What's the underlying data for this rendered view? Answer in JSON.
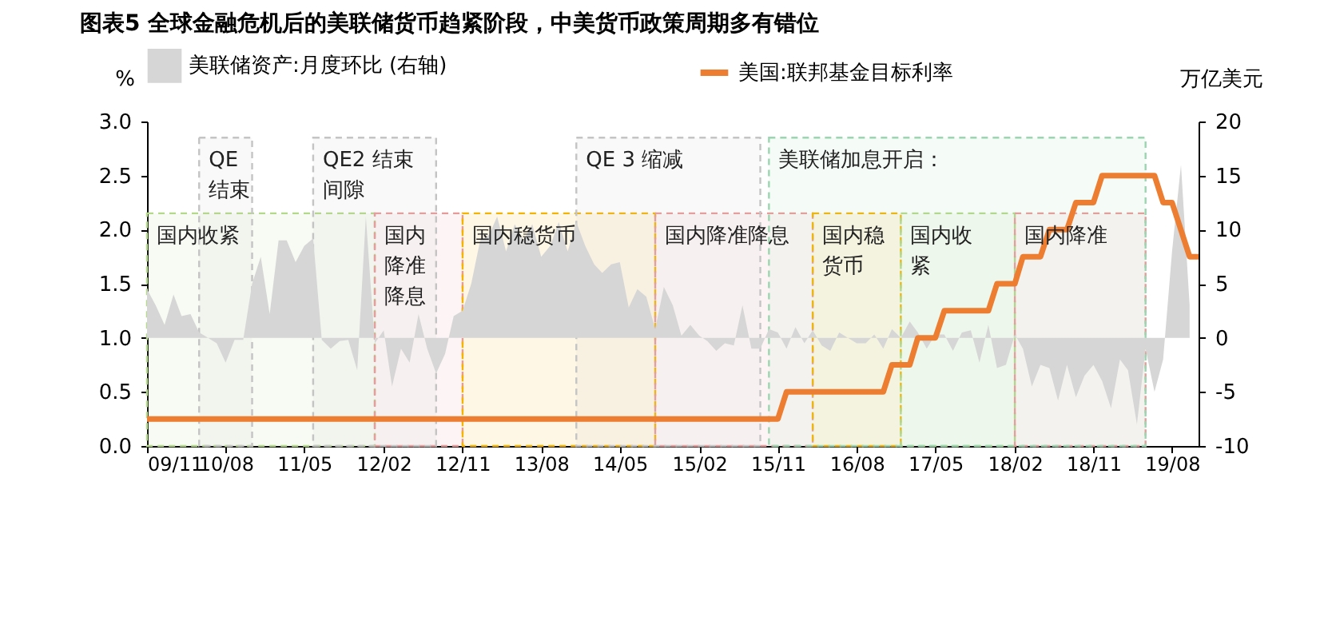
{
  "chart_data": {
    "type": "area",
    "title": "图表5  全球金融危机后的美联储货币趋紧阶段，中美货币政策周期多有错位",
    "ylabel": "%",
    "y2label": "万亿美元",
    "legend": "top",
    "xlim": [
      "2009-11",
      "2019-11"
    ],
    "xticks": [
      {
        "value": "2009-11",
        "label": "09/11"
      },
      {
        "value": "2010-08",
        "label": "10/08"
      },
      {
        "value": "2011-05",
        "label": "11/05"
      },
      {
        "value": "2012-02",
        "label": "12/02"
      },
      {
        "value": "2012-11",
        "label": "12/11"
      },
      {
        "value": "2013-08",
        "label": "13/08"
      },
      {
        "value": "2014-05",
        "label": "14/05"
      },
      {
        "value": "2015-02",
        "label": "15/02"
      },
      {
        "value": "2015-11",
        "label": "15/11"
      },
      {
        "value": "2016-08",
        "label": "16/08"
      },
      {
        "value": "2017-05",
        "label": "17/05"
      },
      {
        "value": "2018-02",
        "label": "18/02"
      },
      {
        "value": "2018-11",
        "label": "18/11"
      },
      {
        "value": "2019-08",
        "label": "19/08"
      }
    ],
    "ylim": [
      0,
      3
    ],
    "yticks": [
      {
        "value": 0,
        "label": "0.0"
      },
      0.5,
      {
        "value": 1,
        "label": "1.0"
      },
      1.5,
      {
        "value": 2,
        "label": "2.0"
      },
      2.5,
      {
        "value": 3,
        "label": "3.0"
      }
    ],
    "y2lim": [
      -10,
      20
    ],
    "y2ticks": [
      -10,
      -5,
      0,
      5,
      10,
      15,
      20
    ],
    "series": [
      {
        "name": "美联储资产:月度环比 (右轴)",
        "axis": "y2",
        "color": "#d6d6d6",
        "x": [
          "2009-11",
          "2009-12",
          "2010-01",
          "2010-02",
          "2010-03",
          "2010-04",
          "2010-05",
          "2010-06",
          "2010-07",
          "2010-08",
          "2010-09",
          "2010-10",
          "2010-11",
          "2010-12",
          "2011-01",
          "2011-02",
          "2011-03",
          "2011-04",
          "2011-05",
          "2011-06",
          "2011-07",
          "2011-08",
          "2011-09",
          "2011-10",
          "2011-11",
          "2011-12",
          "2012-01",
          "2012-02",
          "2012-03",
          "2012-04",
          "2012-05",
          "2012-06",
          "2012-07",
          "2012-08",
          "2012-09",
          "2012-10",
          "2012-11",
          "2012-12",
          "2013-01",
          "2013-02",
          "2013-03",
          "2013-04",
          "2013-05",
          "2013-06",
          "2013-07",
          "2013-08",
          "2013-09",
          "2013-10",
          "2013-11",
          "2013-12",
          "2014-01",
          "2014-02",
          "2014-03",
          "2014-04",
          "2014-05",
          "2014-06",
          "2014-07",
          "2014-08",
          "2014-09",
          "2014-10",
          "2014-11",
          "2014-12",
          "2015-01",
          "2015-02",
          "2015-03",
          "2015-04",
          "2015-05",
          "2015-06",
          "2015-07",
          "2015-08",
          "2015-09",
          "2015-10",
          "2015-11",
          "2015-12",
          "2016-01",
          "2016-02",
          "2016-03",
          "2016-04",
          "2016-05",
          "2016-06",
          "2016-07",
          "2016-08",
          "2016-09",
          "2016-10",
          "2016-11",
          "2016-12",
          "2017-01",
          "2017-02",
          "2017-03",
          "2017-04",
          "2017-05",
          "2017-06",
          "2017-07",
          "2017-08",
          "2017-09",
          "2017-10",
          "2017-11",
          "2017-12",
          "2018-01",
          "2018-02",
          "2018-03",
          "2018-04",
          "2018-05",
          "2018-06",
          "2018-07",
          "2018-08",
          "2018-09",
          "2018-10",
          "2018-11",
          "2018-12",
          "2019-01",
          "2019-02",
          "2019-03",
          "2019-04",
          "2019-05",
          "2019-06",
          "2019-07",
          "2019-08",
          "2019-09",
          "2019-10"
        ],
        "values": [
          4.5,
          3,
          1.2,
          4,
          2,
          2.2,
          0.5,
          0,
          -0.5,
          -2.3,
          -0.2,
          -0.2,
          5,
          7.5,
          2.2,
          9,
          9,
          7,
          8.5,
          9.2,
          -0.2,
          -1,
          -0.3,
          -0.2,
          -3,
          11.2,
          -0.5,
          0.7,
          -4.5,
          -1,
          -2.3,
          2.2,
          -1,
          -3.3,
          -1.5,
          2,
          2.5,
          5,
          9,
          9.5,
          11.2,
          8,
          10.5,
          9,
          10.5,
          7.5,
          8.5,
          10.7,
          8,
          10.7,
          8.5,
          6.8,
          6,
          6.8,
          7,
          2.8,
          4.5,
          3.8,
          0.8,
          4.7,
          3,
          0.2,
          1.2,
          0.2,
          -0.3,
          -1.2,
          -0.5,
          -0.7,
          3,
          -1,
          -1,
          0.8,
          0.5,
          -1,
          1,
          -0.5,
          0.7,
          -0.7,
          -1.2,
          0.5,
          0,
          -0.5,
          -0.5,
          0.3,
          -1,
          0.8,
          0,
          1.5,
          0.5,
          -1,
          0.3,
          0.3,
          -1.2,
          0.5,
          0.7,
          -2.3,
          1.2,
          -2.8,
          -2.5,
          0.3,
          -1,
          -4.5,
          -2.5,
          -2.8,
          -5.8,
          -2.5,
          -5.5,
          -3.5,
          -2.5,
          -4,
          -6.5,
          -2,
          -3,
          -8,
          -1,
          -5,
          -2,
          8,
          16,
          3
        ]
      },
      {
        "name": "美国:联邦基金目标利率",
        "type": "line",
        "color": "#ed7d31",
        "x": [
          "2009-11",
          "2015-11",
          "2015-12",
          "2016-11",
          "2016-12",
          "2017-02",
          "2017-03",
          "2017-05",
          "2017-06",
          "2017-11",
          "2017-12",
          "2018-02",
          "2018-03",
          "2018-05",
          "2018-06",
          "2018-08",
          "2018-09",
          "2018-11",
          "2018-12",
          "2019-06",
          "2019-07",
          "2019-08",
          "2019-10",
          "2019-11"
        ],
        "values": [
          0.25,
          0.25,
          0.5,
          0.5,
          0.75,
          0.75,
          1,
          1,
          1.25,
          1.25,
          1.5,
          1.5,
          1.75,
          1.75,
          2,
          2,
          2.25,
          2.25,
          2.5,
          2.5,
          2.25,
          2.25,
          1.75,
          1.75
        ]
      }
    ],
    "bands": [
      {
        "axis": "x",
        "from": "2009-11",
        "to": "2012-01",
        "label": "国内收紧",
        "color": "#b5d98a"
      },
      {
        "axis": "x",
        "from": "2012-01",
        "to": "2012-11",
        "label": "国内降准降息",
        "color": "#e89a9a"
      },
      {
        "axis": "x",
        "from": "2012-11",
        "to": "2014-09",
        "label": "国内稳货币",
        "color": "#f5b400"
      },
      {
        "axis": "x",
        "from": "2014-09",
        "to": "2016-03",
        "label": "国内降准降息",
        "color": "#e89a9a"
      },
      {
        "axis": "x",
        "from": "2016-03",
        "to": "2017-01",
        "label": "国内稳货币",
        "color": "#f5b400"
      },
      {
        "axis": "x",
        "from": "2017-01",
        "to": "2018-02",
        "label": "国内收紧",
        "color": "#b5d98a"
      },
      {
        "axis": "x",
        "from": "2018-02",
        "to": "2019-05",
        "label": "国内降准",
        "color": "#e89a9a"
      },
      {
        "axis": "x",
        "from": "2010-05",
        "to": "2010-11",
        "label": "QE结束",
        "color": "#c4c4c4"
      },
      {
        "axis": "x",
        "from": "2011-06",
        "to": "2012-08",
        "label": "QE2 结束间隙",
        "color": "#c4c4c4"
      },
      {
        "axis": "x",
        "from": "2013-12",
        "to": "2015-09",
        "label": "QE 3 缩减",
        "color": "#c4c4c4"
      },
      {
        "axis": "x",
        "from": "2015-10",
        "to": "2019-05",
        "label": "美联储加息开启：",
        "color": "#9ad6b0"
      }
    ]
  }
}
